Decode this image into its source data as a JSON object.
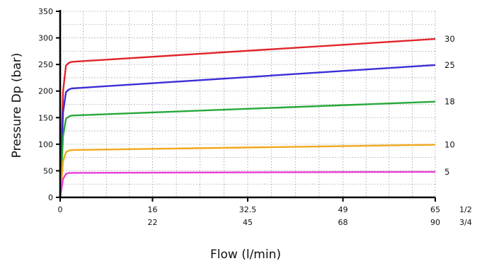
{
  "chart_data": {
    "type": "line",
    "title": "",
    "xlabel": "Flow (l/min)",
    "ylabel": "Pressure Dp (bar)",
    "xlim": [
      0,
      65
    ],
    "ylim": [
      0,
      350
    ],
    "yticks": [
      "0",
      "50",
      "100",
      "150",
      "200",
      "250",
      "300",
      "350"
    ],
    "xtick_values": [
      0,
      16,
      32.5,
      49,
      65
    ],
    "xticks_row1": [
      "0",
      "16",
      "32.5",
      "49",
      "65"
    ],
    "xticks_row2": [
      "",
      "22",
      "45",
      "68",
      "90"
    ],
    "xticks_row_labels": [
      "1/2",
      "3/4"
    ],
    "grid": true,
    "series": [
      {
        "name": "30",
        "color": "#e0252b",
        "x": [
          0,
          0.5,
          1,
          1.5,
          2,
          65
        ],
        "y": [
          0,
          200,
          248,
          253,
          255,
          298
        ]
      },
      {
        "name": "25",
        "color": "#3a2fd6",
        "x": [
          0,
          0.5,
          1,
          1.5,
          2,
          65
        ],
        "y": [
          0,
          160,
          198,
          203,
          205,
          249
        ]
      },
      {
        "name": "18",
        "color": "#27a83a",
        "x": [
          0,
          0.5,
          1,
          1.5,
          2,
          65
        ],
        "y": [
          0,
          115,
          148,
          152,
          154,
          180
        ]
      },
      {
        "name": "10",
        "color": "#f2a81d",
        "x": [
          0,
          0.5,
          1,
          1.5,
          2,
          65
        ],
        "y": [
          0,
          68,
          85,
          88,
          89,
          99
        ]
      },
      {
        "name": "5",
        "color": "#e93fd8",
        "x": [
          0,
          0.5,
          1,
          1.5,
          2,
          65
        ],
        "y": [
          0,
          35,
          44,
          46,
          46,
          48
        ]
      }
    ]
  }
}
